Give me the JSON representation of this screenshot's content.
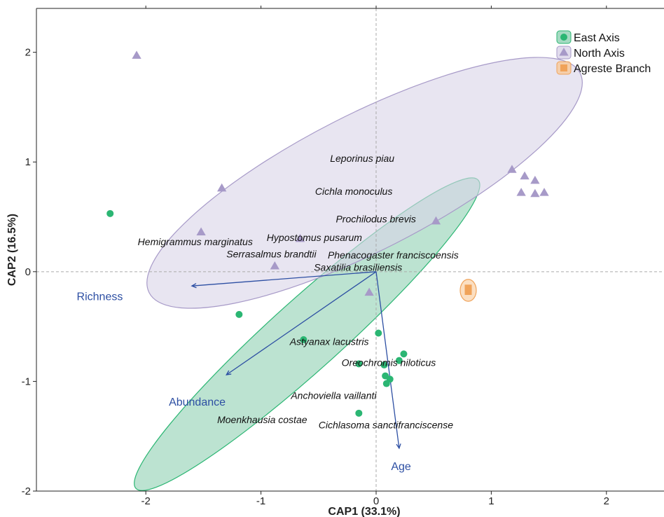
{
  "chart_data": {
    "type": "scatter",
    "xlabel": "CAP1 (33.1%)",
    "ylabel": "CAP2 (16.5%)",
    "xlim": [
      -2.95,
      2.5
    ],
    "ylim": [
      -2.0,
      2.4
    ],
    "x_ticks": [
      -2,
      -1,
      0,
      1,
      2
    ],
    "y_ticks": [
      -2,
      -1,
      0,
      1,
      2
    ],
    "x_tick_labels": [
      "-2",
      "-1",
      "0",
      "1",
      "2"
    ],
    "y_tick_labels": [
      "-2",
      "-1",
      "0",
      "1",
      "2"
    ],
    "reference_lines": {
      "x": 0,
      "y": 0,
      "style": "dashed"
    },
    "grid": false,
    "legend_position": "top-right",
    "series": [
      {
        "name": "East Axis",
        "marker": "circle",
        "color": "#2bb673",
        "fill": "#8fd1b3",
        "ellipse": {
          "cx": -0.6,
          "cy": -0.57,
          "rx": 2.0,
          "ry": 0.32,
          "angle_deg": -42
        },
        "points": [
          {
            "x": -2.31,
            "y": 0.53
          },
          {
            "x": -1.19,
            "y": -0.39
          },
          {
            "x": -0.63,
            "y": -0.62
          },
          {
            "x": 0.02,
            "y": -0.56
          },
          {
            "x": 0.24,
            "y": -0.75
          },
          {
            "x": 0.2,
            "y": -0.81
          },
          {
            "x": -0.15,
            "y": -0.84
          },
          {
            "x": 0.07,
            "y": -0.85
          },
          {
            "x": 0.08,
            "y": -0.95
          },
          {
            "x": 0.12,
            "y": -0.98
          },
          {
            "x": 0.09,
            "y": -1.02
          },
          {
            "x": -0.15,
            "y": -1.29
          }
        ]
      },
      {
        "name": "North Axis",
        "marker": "triangle",
        "color": "#a79ac8",
        "fill": "#d9d3e8",
        "ellipse": {
          "cx": -0.1,
          "cy": 0.81,
          "rx": 2.1,
          "ry": 0.62,
          "angle_deg": -27
        },
        "points": [
          {
            "x": -2.08,
            "y": 1.97
          },
          {
            "x": -1.34,
            "y": 0.76
          },
          {
            "x": -1.52,
            "y": 0.36
          },
          {
            "x": -0.88,
            "y": 0.05
          },
          {
            "x": -0.66,
            "y": 0.3
          },
          {
            "x": -0.06,
            "y": -0.19
          },
          {
            "x": 0.52,
            "y": 0.46
          },
          {
            "x": 1.18,
            "y": 0.93
          },
          {
            "x": 1.29,
            "y": 0.87
          },
          {
            "x": 1.38,
            "y": 0.83
          },
          {
            "x": 1.26,
            "y": 0.72
          },
          {
            "x": 1.38,
            "y": 0.71
          },
          {
            "x": 1.46,
            "y": 0.72
          }
        ]
      },
      {
        "name": "Agreste Branch",
        "marker": "square",
        "color": "#f0a35a",
        "fill": "#f8c99a",
        "ellipse": {
          "cx": 0.8,
          "cy": -0.17,
          "rx": 0.07,
          "ry": 0.1,
          "angle_deg": 0
        },
        "points": [
          {
            "x": 0.8,
            "y": -0.15
          },
          {
            "x": 0.8,
            "y": -0.18
          }
        ]
      }
    ],
    "vectors": {
      "color": "#2d4fa3",
      "items": [
        {
          "label": "Richness",
          "x": -1.6,
          "y": -0.13,
          "label_x": -2.6,
          "label_y": -0.26
        },
        {
          "label": "Abundance",
          "x": -1.3,
          "y": -0.94,
          "label_x": -1.8,
          "label_y": -1.22
        },
        {
          "label": "Age",
          "x": 0.2,
          "y": -1.61,
          "label_x": 0.13,
          "label_y": -1.81
        }
      ]
    },
    "species_labels": [
      {
        "text": "Leporinus piau",
        "x": -0.4,
        "y": 1.0
      },
      {
        "text": "Cichla monoculus",
        "x": -0.53,
        "y": 0.7
      },
      {
        "text": "Prochilodus brevis",
        "x": -0.35,
        "y": 0.45
      },
      {
        "text": "Hypostomus pusarum",
        "x": -0.95,
        "y": 0.28
      },
      {
        "text": "Hemigrammus marginatus",
        "x": -2.07,
        "y": 0.24
      },
      {
        "text": "Serrasalmus brandtii",
        "x": -1.3,
        "y": 0.13
      },
      {
        "text": "Phenacogaster franciscoensis",
        "x": -0.42,
        "y": 0.12
      },
      {
        "text": "Saxatilia brasiliensis",
        "x": -0.54,
        "y": 0.01
      },
      {
        "text": "Astyanax lacustris",
        "x": -0.75,
        "y": -0.67
      },
      {
        "text": "Oreochromis niloticus",
        "x": -0.3,
        "y": -0.86
      },
      {
        "text": "Anchoviella vaillanti",
        "x": -0.74,
        "y": -1.16
      },
      {
        "text": "Moenkhausia costae",
        "x": -1.38,
        "y": -1.38
      },
      {
        "text": "Cichlasoma sanctifranciscense",
        "x": -0.5,
        "y": -1.43
      }
    ]
  }
}
